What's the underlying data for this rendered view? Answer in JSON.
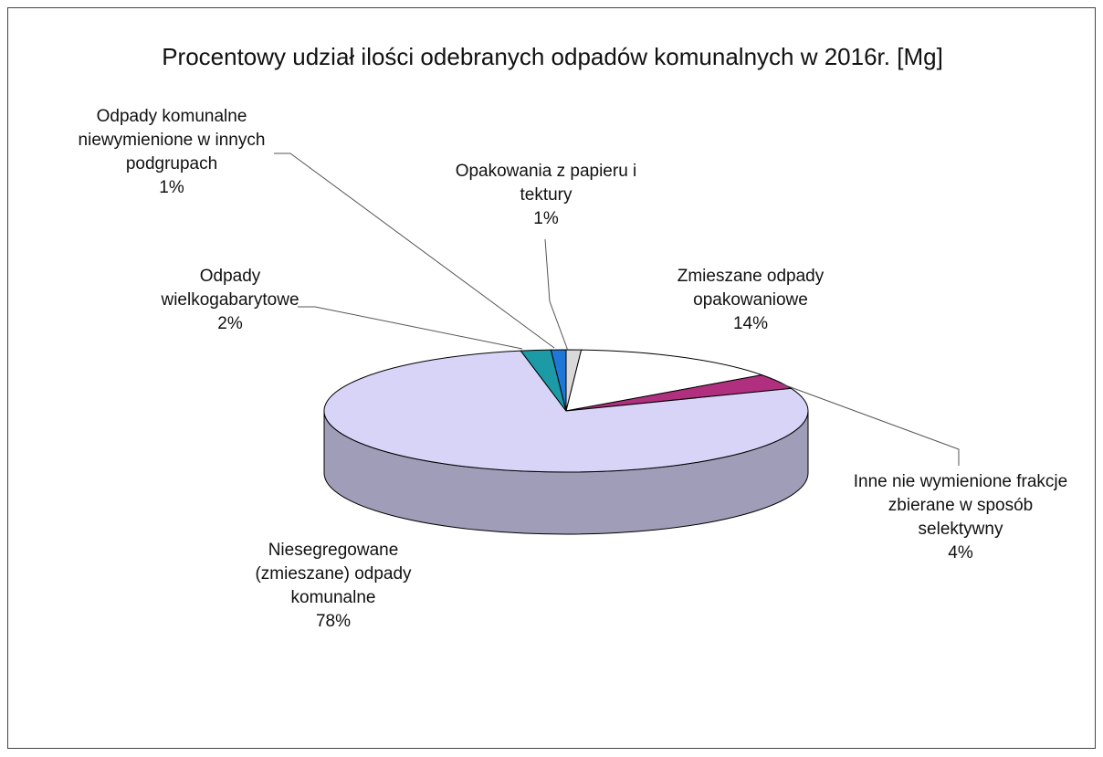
{
  "chart_data": {
    "type": "pie",
    "title": "Procentowy udział ilości odebranych odpadów komunalnych w 2016r. [Mg]",
    "categories": [
      "Opakowania z papieru i tektury",
      "Zmieszane odpady opakowaniowe",
      "Inne nie wymienione frakcje zbierane w sposób selektywny",
      "Niesegregowane (zmieszane) odpady komunalne",
      "Odpady wielkogabarytowe",
      "Odpady komunalne niewymienione w innych podgrupach"
    ],
    "values": [
      1,
      14,
      4,
      78,
      2,
      1
    ],
    "value_labels": [
      "1%",
      "14%",
      "4%",
      "78%",
      "2%",
      "1%"
    ],
    "colors": [
      "#d9d9d9",
      "#ffffff",
      "#b0307f",
      "#d8d4f8",
      "#1c9aa6",
      "#1f78d8"
    ]
  }
}
